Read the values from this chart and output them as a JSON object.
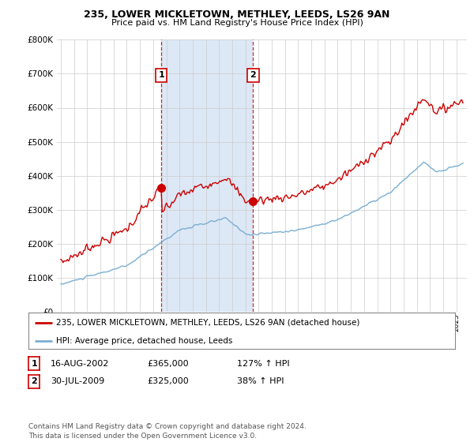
{
  "title1": "235, LOWER MICKLETOWN, METHLEY, LEEDS, LS26 9AN",
  "title2": "Price paid vs. HM Land Registry's House Price Index (HPI)",
  "legend_line1": "235, LOWER MICKLETOWN, METHLEY, LEEDS, LS26 9AN (detached house)",
  "legend_line2": "HPI: Average price, detached house, Leeds",
  "table_row1": [
    "1",
    "16-AUG-2002",
    "£365,000",
    "127% ↑ HPI"
  ],
  "table_row2": [
    "2",
    "30-JUL-2009",
    "£325,000",
    "38% ↑ HPI"
  ],
  "footnote": "Contains HM Land Registry data © Crown copyright and database right 2024.\nThis data is licensed under the Open Government Licence v3.0.",
  "ylim": [
    0,
    800000
  ],
  "yticks": [
    0,
    100000,
    200000,
    300000,
    400000,
    500000,
    600000,
    700000,
    800000
  ],
  "background_color": "#ffffff",
  "chart_bg": "#ffffff",
  "shade_color": "#dce8f5",
  "grid_color": "#cccccc",
  "sale1_year": 2002.62,
  "sale1_price": 365000,
  "sale2_year": 2009.58,
  "sale2_price": 325000,
  "sale_color": "#cc0000",
  "hpi_color": "#7bafd4",
  "vline_color": "#cc0000"
}
